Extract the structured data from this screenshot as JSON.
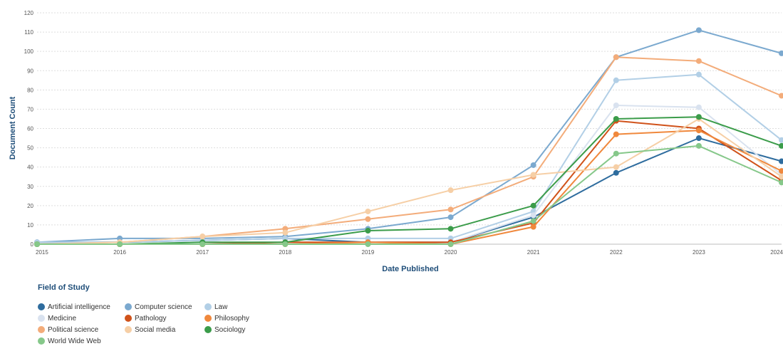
{
  "chart_data": {
    "type": "line",
    "xlabel": "Date Published",
    "ylabel": "Document Count",
    "x": [
      "2015",
      "2016",
      "2017",
      "2018",
      "2019",
      "2020",
      "2021",
      "2022",
      "2023",
      "2024"
    ],
    "ylim": [
      0,
      120
    ],
    "yticks": [
      "0",
      "10",
      "20",
      "30",
      "40",
      "50",
      "60",
      "70",
      "80",
      "90",
      "100",
      "110",
      "120"
    ],
    "grid": true,
    "legend_title": "Field of Study",
    "legend_position": "bottom-left",
    "series": [
      {
        "name": "Artificial intelligence",
        "color": "#2e6c9e",
        "values": [
          1,
          1,
          2,
          3,
          1,
          1,
          14,
          37,
          55,
          43
        ]
      },
      {
        "name": "Computer science",
        "color": "#7ba9cf",
        "values": [
          1,
          3,
          3,
          4,
          8,
          14,
          41,
          97,
          111,
          99
        ]
      },
      {
        "name": "Law",
        "color": "#b2cfe6",
        "values": [
          1,
          1,
          2,
          3,
          3,
          3,
          17,
          85,
          88,
          54
        ]
      },
      {
        "name": "Medicine",
        "color": "#d9e2ef",
        "values": [
          0,
          0,
          1,
          1,
          1,
          1,
          15,
          72,
          71,
          36
        ]
      },
      {
        "name": "Pathology",
        "color": "#d0521a",
        "values": [
          0,
          0,
          0,
          1,
          1,
          1,
          11,
          64,
          60,
          33
        ]
      },
      {
        "name": "Philosophy",
        "color": "#f0883c",
        "values": [
          0,
          0,
          0,
          0,
          1,
          0,
          9,
          57,
          59,
          38
        ]
      },
      {
        "name": "Political science",
        "color": "#f3ac7a",
        "values": [
          0,
          1,
          4,
          8,
          13,
          18,
          35,
          97,
          95,
          77
        ]
      },
      {
        "name": "Social media",
        "color": "#f6cfa6",
        "values": [
          0,
          1,
          4,
          6,
          17,
          28,
          36,
          40,
          65,
          35
        ]
      },
      {
        "name": "Sociology",
        "color": "#3b9c4a",
        "values": [
          0,
          0,
          1,
          1,
          7,
          8,
          20,
          65,
          66,
          51
        ]
      },
      {
        "name": "World Wide Web",
        "color": "#86c88a",
        "values": [
          0,
          0,
          0,
          0,
          0,
          0,
          12,
          47,
          51,
          32
        ]
      }
    ]
  }
}
